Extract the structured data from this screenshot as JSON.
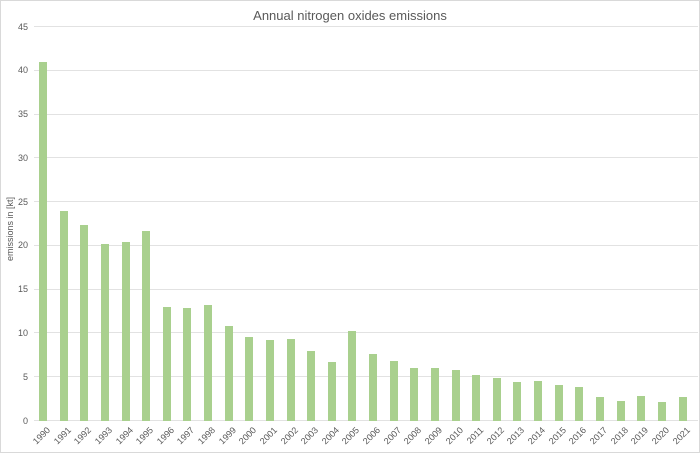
{
  "chart_data": {
    "type": "bar",
    "title": "Annual nitrogen oxides emissions",
    "xlabel": "",
    "ylabel": "emissions in [kt]",
    "categories": [
      "1990",
      "1991",
      "1992",
      "1993",
      "1994",
      "1995",
      "1996",
      "1997",
      "1998",
      "1999",
      "2000",
      "2001",
      "2002",
      "2003",
      "2004",
      "2005",
      "2006",
      "2007",
      "2008",
      "2009",
      "2010",
      "2011",
      "2012",
      "2013",
      "2014",
      "2015",
      "2016",
      "2017",
      "2018",
      "2019",
      "2020",
      "2021"
    ],
    "values": [
      41.0,
      24.0,
      22.4,
      20.2,
      20.4,
      21.7,
      13.0,
      12.9,
      13.3,
      10.9,
      9.6,
      9.2,
      9.4,
      8.0,
      6.7,
      10.3,
      7.7,
      6.8,
      6.1,
      6.0,
      5.8,
      5.3,
      4.9,
      4.5,
      4.6,
      4.1,
      3.9,
      2.8,
      2.3,
      2.9,
      2.2,
      2.7
    ],
    "ylim": [
      0,
      45
    ],
    "yticks": [
      0,
      5,
      10,
      15,
      20,
      25,
      30,
      35,
      40,
      45
    ],
    "grid": true,
    "legend": false,
    "colors": {
      "bar": "#a9d08e",
      "gridline": "#e2e2e2",
      "text": "#595959",
      "frame_border": "#d9d9d9",
      "background": "#ffffff"
    }
  }
}
